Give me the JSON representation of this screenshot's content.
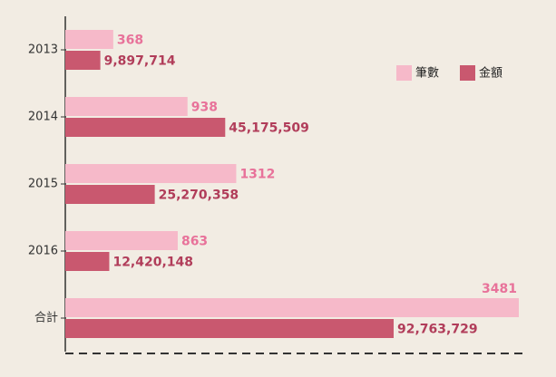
{
  "chart_data": {
    "type": "bar",
    "orientation": "horizontal",
    "categories": [
      "2013",
      "2014",
      "2015",
      "2016",
      "合計"
    ],
    "series": [
      {
        "name": "筆數",
        "color": "#f6b9c9",
        "label_color": "#e8729a",
        "values": [
          368,
          938,
          1312,
          863,
          3481
        ]
      },
      {
        "name": "金額",
        "color": "#c9586f",
        "label_color": "#b13d5a",
        "values": [
          9897714,
          45175509,
          25270358,
          12420148,
          92763729
        ],
        "value_labels": [
          "9,897,714",
          "45,175,509",
          "25,270,358",
          "12,420,148",
          "92,763,729"
        ]
      }
    ],
    "legend": "top-right"
  }
}
